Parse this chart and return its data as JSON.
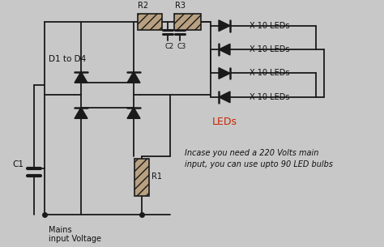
{
  "bg_color": "#c8c8c8",
  "line_color": "#1a1a1a",
  "text_color": "#111111",
  "red_color": "#cc2200",
  "annotation_line1": "Incase you need a 220 Volts main",
  "annotation_line2": "input, you can use upto 90 LED bulbs",
  "label_d1d4": "D1 to D4",
  "label_c1": "C1",
  "label_r1": "R1",
  "label_r2": "R2",
  "label_r3": "R3",
  "label_c2": "C2",
  "label_c3": "C3",
  "label_leds": "LEDs",
  "label_mains": "Mains\ninput Voltage",
  "led_labels": [
    "X 10 LEDs",
    "X 10 LEDs",
    "X 10 LEDs",
    "X 10 LEDs"
  ],
  "r2_hatch": "///",
  "r3_hatch": "///",
  "r1_hatch": "///",
  "resistor_color": "#b8a080"
}
